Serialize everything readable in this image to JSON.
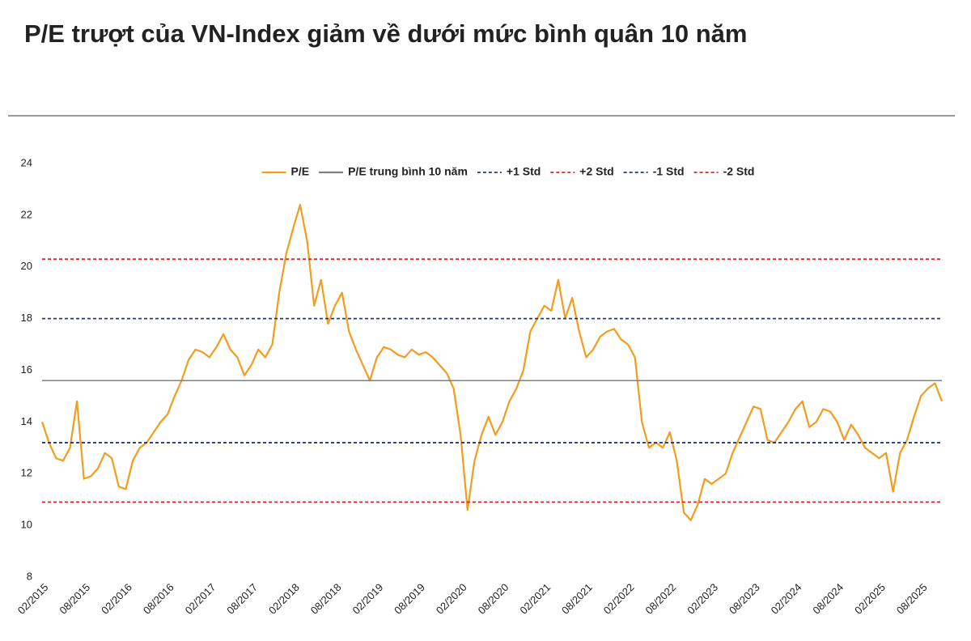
{
  "chart_data": {
    "type": "line",
    "title": "P/E trượt của VN-Index giảm về dưới mức bình quân 10 năm",
    "x": [
      "02/2015",
      "03/2015",
      "04/2015",
      "05/2015",
      "06/2015",
      "07/2015",
      "08/2015",
      "09/2015",
      "10/2015",
      "11/2015",
      "12/2015",
      "01/2016",
      "02/2016",
      "03/2016",
      "04/2016",
      "05/2016",
      "06/2016",
      "07/2016",
      "08/2016",
      "09/2016",
      "10/2016",
      "11/2016",
      "12/2016",
      "01/2017",
      "02/2017",
      "03/2017",
      "04/2017",
      "05/2017",
      "06/2017",
      "07/2017",
      "08/2017",
      "09/2017",
      "10/2017",
      "11/2017",
      "12/2017",
      "01/2018",
      "02/2018",
      "03/2018",
      "04/2018",
      "05/2018",
      "06/2018",
      "07/2018",
      "08/2018",
      "09/2018",
      "10/2018",
      "11/2018",
      "12/2018",
      "01/2019",
      "02/2019",
      "03/2019",
      "04/2019",
      "05/2019",
      "06/2019",
      "07/2019",
      "08/2019",
      "09/2019",
      "10/2019",
      "11/2019",
      "12/2019",
      "01/2020",
      "02/2020",
      "03/2020",
      "04/2020",
      "05/2020",
      "06/2020",
      "07/2020",
      "08/2020",
      "09/2020",
      "10/2020",
      "11/2020",
      "12/2020",
      "01/2021",
      "02/2021",
      "03/2021",
      "04/2021",
      "05/2021",
      "06/2021",
      "07/2021",
      "08/2021",
      "09/2021",
      "10/2021",
      "11/2021",
      "12/2021",
      "01/2022",
      "02/2022",
      "03/2022",
      "04/2022",
      "05/2022",
      "06/2022",
      "07/2022",
      "08/2022",
      "09/2022",
      "10/2022",
      "11/2022",
      "12/2022",
      "01/2023",
      "02/2023",
      "03/2023",
      "04/2023",
      "05/2023",
      "06/2023",
      "07/2023",
      "08/2023",
      "09/2023",
      "10/2023",
      "11/2023",
      "12/2023",
      "01/2024",
      "02/2024",
      "03/2024",
      "04/2024",
      "05/2024",
      "06/2024",
      "07/2024",
      "08/2024",
      "09/2024",
      "10/2024",
      "11/2024",
      "12/2024",
      "01/2025",
      "02/2025",
      "03/2025",
      "04/2025",
      "05/2025",
      "06/2025",
      "07/2025",
      "08/2025",
      "09/2025",
      "10/2025",
      "11/2025"
    ],
    "series": [
      {
        "name": "P/E",
        "color": "#f39c1e",
        "values": [
          14.0,
          13.2,
          12.6,
          12.5,
          13.0,
          14.8,
          11.8,
          11.9,
          12.2,
          12.8,
          12.6,
          11.5,
          11.4,
          12.5,
          13.0,
          13.2,
          13.6,
          14.0,
          14.3,
          15.0,
          15.6,
          16.4,
          16.8,
          16.7,
          16.5,
          16.9,
          17.4,
          16.8,
          16.5,
          15.8,
          16.2,
          16.8,
          16.5,
          17.0,
          19.0,
          20.5,
          21.5,
          22.4,
          21.0,
          18.5,
          19.5,
          17.8,
          18.5,
          19.0,
          17.5,
          16.8,
          16.2,
          15.6,
          16.5,
          16.9,
          16.8,
          16.6,
          16.5,
          16.8,
          16.6,
          16.7,
          16.5,
          16.2,
          15.9,
          15.3,
          13.5,
          10.6,
          12.5,
          13.5,
          14.2,
          13.5,
          14.0,
          14.8,
          15.3,
          16.0,
          17.5,
          18.0,
          18.5,
          18.3,
          19.5,
          18.0,
          18.8,
          17.5,
          16.5,
          16.8,
          17.3,
          17.5,
          17.6,
          17.2,
          17.0,
          16.5,
          14.0,
          13.0,
          13.2,
          13.0,
          13.6,
          12.5,
          10.5,
          10.2,
          10.8,
          11.8,
          11.6,
          11.8,
          12.0,
          12.8,
          13.4,
          14.0,
          14.6,
          14.5,
          13.3,
          13.2,
          13.6,
          14.0,
          14.5,
          14.8,
          13.8,
          14.0,
          14.5,
          14.4,
          14.0,
          13.3,
          13.9,
          13.5,
          13.0,
          12.8,
          12.6,
          12.8,
          11.3,
          12.8,
          13.3,
          14.2,
          15.0,
          15.3,
          15.5,
          14.8
        ]
      },
      {
        "name": "P/E trung bình 10 năm",
        "color": "#808080",
        "value": 15.6,
        "dash": false
      },
      {
        "name": "+1 Std",
        "color": "#1f3a7a",
        "value": 18.0,
        "dash": true
      },
      {
        "name": "+2 Std",
        "color": "#e0262b",
        "value": 20.3,
        "dash": true
      },
      {
        "name": "-1 Std",
        "color": "#1f3a7a",
        "value": 13.2,
        "dash": true
      },
      {
        "name": "-2 Std",
        "color": "#e0262b",
        "value": 10.9,
        "dash": true
      }
    ],
    "ylim": [
      8,
      24
    ],
    "yticks": [
      8,
      10,
      12,
      14,
      16,
      18,
      20,
      22,
      24
    ],
    "xticks": [
      "02/2015",
      "08/2015",
      "02/2016",
      "08/2016",
      "02/2017",
      "08/2017",
      "02/2018",
      "08/2018",
      "02/2019",
      "08/2019",
      "02/2020",
      "08/2020",
      "02/2021",
      "08/2021",
      "02/2022",
      "08/2022",
      "02/2023",
      "08/2023",
      "02/2024",
      "08/2024",
      "02/2025",
      "08/2025"
    ],
    "legend": "top",
    "grid": false
  }
}
